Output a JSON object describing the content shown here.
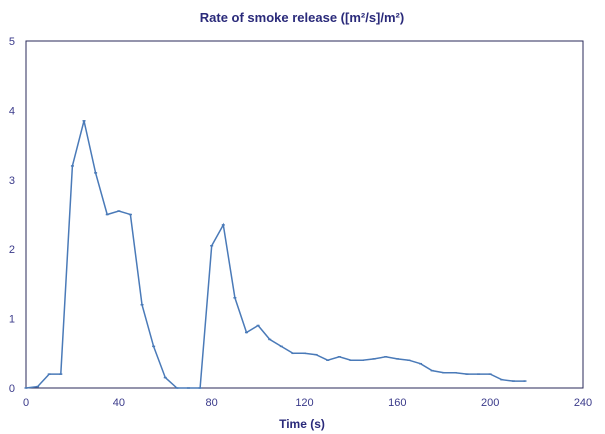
{
  "chart_data": {
    "type": "line",
    "title": "Rate of smoke release ([m²/s]/m²)",
    "xlabel": "Time (s)",
    "ylabel": "",
    "xlim": [
      0,
      240
    ],
    "ylim": [
      0,
      5
    ],
    "x_ticks": [
      "0",
      "40",
      "80",
      "120",
      "160",
      "200",
      "240"
    ],
    "y_ticks": [
      "0",
      "1",
      "2",
      "3",
      "4",
      "5"
    ],
    "grid": false,
    "series": [
      {
        "color": "#4a7ab8",
        "points": [
          [
            0,
            0
          ],
          [
            5,
            0.02
          ],
          [
            10,
            0.2
          ],
          [
            15,
            0.2
          ],
          [
            20,
            3.2
          ],
          [
            25,
            3.85
          ],
          [
            30,
            3.1
          ],
          [
            35,
            2.5
          ],
          [
            40,
            2.55
          ],
          [
            45,
            2.5
          ],
          [
            50,
            1.2
          ],
          [
            55,
            0.6
          ],
          [
            60,
            0.15
          ],
          [
            65,
            0.0
          ],
          [
            70,
            0.0
          ],
          [
            75,
            0.0
          ],
          [
            80,
            2.05
          ],
          [
            85,
            2.35
          ],
          [
            90,
            1.3
          ],
          [
            95,
            0.8
          ],
          [
            100,
            0.9
          ],
          [
            105,
            0.7
          ],
          [
            110,
            0.6
          ],
          [
            115,
            0.5
          ],
          [
            120,
            0.5
          ],
          [
            125,
            0.48
          ],
          [
            130,
            0.4
          ],
          [
            135,
            0.45
          ],
          [
            140,
            0.4
          ],
          [
            145,
            0.4
          ],
          [
            150,
            0.42
          ],
          [
            155,
            0.45
          ],
          [
            160,
            0.42
          ],
          [
            165,
            0.4
          ],
          [
            170,
            0.35
          ],
          [
            175,
            0.25
          ],
          [
            180,
            0.22
          ],
          [
            185,
            0.22
          ],
          [
            190,
            0.2
          ],
          [
            195,
            0.2
          ],
          [
            200,
            0.2
          ],
          [
            205,
            0.12
          ],
          [
            210,
            0.1
          ],
          [
            215,
            0.1
          ]
        ]
      }
    ]
  }
}
